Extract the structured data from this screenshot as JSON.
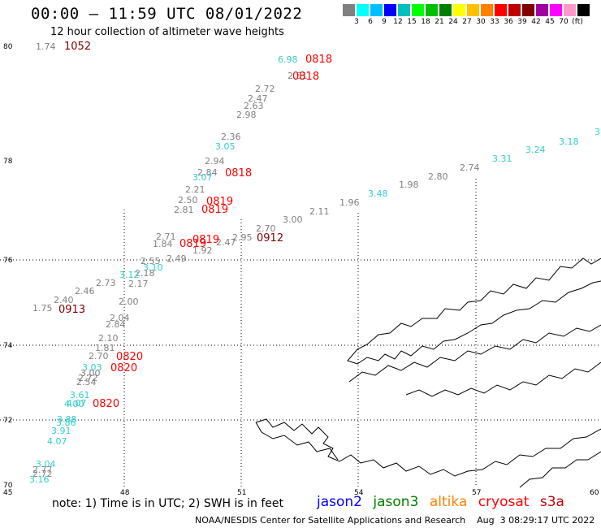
{
  "header": {
    "title": "00:00 – 11:59 UTC 08/01/2022",
    "subtitle": "12 hour collection of altimeter wave heights"
  },
  "color_scale": {
    "colors": [
      "#808080",
      "#00ffff",
      "#00bfff",
      "#0000ff",
      "#00bfbf",
      "#00ff00",
      "#00c000",
      "#008000",
      "#ffff00",
      "#ffc000",
      "#ff8000",
      "#ff0000",
      "#c00000",
      "#800000",
      "#a000a0",
      "#ff00ff",
      "#ff99cc",
      "#000000"
    ],
    "labels": [
      "3",
      "6",
      "9",
      "12",
      "15",
      "18",
      "21",
      "24",
      "27",
      "30",
      "33",
      "36",
      "39",
      "42",
      "45",
      "70",
      "(ft)"
    ]
  },
  "axes": {
    "lat_labels": [
      "80",
      "78",
      "76",
      "74",
      "72",
      "70"
    ],
    "lon_labels": [
      "45",
      "48",
      "51",
      "54",
      "57",
      "60"
    ]
  },
  "swh_points": [
    {
      "text": "1.74",
      "color": "#808080"
    },
    {
      "text": "6.98",
      "color": "#33cccc"
    },
    {
      "text": "2.51",
      "color": "#808080"
    },
    {
      "text": "2.72",
      "color": "#808080"
    },
    {
      "text": "2.47",
      "color": "#808080"
    },
    {
      "text": "2.63",
      "color": "#808080"
    },
    {
      "text": "2.98",
      "color": "#808080"
    },
    {
      "text": "2.36",
      "color": "#808080"
    },
    {
      "text": "3.05",
      "color": "#33cccc"
    },
    {
      "text": "2.94",
      "color": "#808080"
    },
    {
      "text": "2.84",
      "color": "#808080"
    },
    {
      "text": "3.07",
      "color": "#33cccc"
    },
    {
      "text": "2.21",
      "color": "#808080"
    },
    {
      "text": "2.50",
      "color": "#808080"
    },
    {
      "text": "2.81",
      "color": "#808080"
    },
    {
      "text": "2.71",
      "color": "#808080"
    },
    {
      "text": "1.84",
      "color": "#808080"
    },
    {
      "text": "1.92",
      "color": "#808080"
    },
    {
      "text": "2.47",
      "color": "#808080"
    },
    {
      "text": "2.95",
      "color": "#808080"
    },
    {
      "text": "2.70",
      "color": "#808080"
    },
    {
      "text": "3.00",
      "color": "#808080"
    },
    {
      "text": "2.11",
      "color": "#808080"
    },
    {
      "text": "1.96",
      "color": "#808080"
    },
    {
      "text": "3.48",
      "color": "#33cccc"
    },
    {
      "text": "1.98",
      "color": "#808080"
    },
    {
      "text": "2.80",
      "color": "#808080"
    },
    {
      "text": "2.74",
      "color": "#808080"
    },
    {
      "text": "3.31",
      "color": "#33cccc"
    },
    {
      "text": "3.24",
      "color": "#33cccc"
    },
    {
      "text": "3.18",
      "color": "#33cccc"
    },
    {
      "text": "3",
      "color": "#33cccc"
    },
    {
      "text": "2.49",
      "color": "#808080"
    },
    {
      "text": "2.55",
      "color": "#808080"
    },
    {
      "text": "3.10",
      "color": "#33cccc"
    },
    {
      "text": "2.18",
      "color": "#808080"
    },
    {
      "text": "3.12",
      "color": "#33cccc"
    },
    {
      "text": "2.73",
      "color": "#808080"
    },
    {
      "text": "2.17",
      "color": "#808080"
    },
    {
      "text": "2.46",
      "color": "#808080"
    },
    {
      "text": "2.40",
      "color": "#808080"
    },
    {
      "text": "1.75",
      "color": "#808080"
    },
    {
      "text": "2.00",
      "color": "#808080"
    },
    {
      "text": "2.04",
      "color": "#808080"
    },
    {
      "text": "2.84",
      "color": "#808080"
    },
    {
      "text": "2.10",
      "color": "#808080"
    },
    {
      "text": "1.81",
      "color": "#808080"
    },
    {
      "text": "2.70",
      "color": "#808080"
    },
    {
      "text": "3.03",
      "color": "#33cccc"
    },
    {
      "text": "3.00",
      "color": "#808080"
    },
    {
      "text": "2.72",
      "color": "#808080"
    },
    {
      "text": "2.54",
      "color": "#808080"
    },
    {
      "text": "3.61",
      "color": "#33cccc"
    },
    {
      "text": "4.07",
      "color": "#33cccc"
    },
    {
      "text": "4.00",
      "color": "#33cccc"
    },
    {
      "text": "3.88",
      "color": "#33cccc"
    },
    {
      "text": "3.86",
      "color": "#33cccc"
    },
    {
      "text": "3.91",
      "color": "#33cccc"
    },
    {
      "text": "4.07",
      "color": "#33cccc"
    },
    {
      "text": "3.04",
      "color": "#33cccc"
    },
    {
      "text": "2.77",
      "color": "#808080"
    },
    {
      "text": "2.72",
      "color": "#808080"
    },
    {
      "text": "3.16",
      "color": "#33cccc"
    }
  ],
  "time_labels": [
    {
      "text": "1052",
      "color": "#800000"
    },
    {
      "text": "0818",
      "color": "#ff0000"
    },
    {
      "text": "0818",
      "color": "#ff0000"
    },
    {
      "text": "0818",
      "color": "#ff0000"
    },
    {
      "text": "0819",
      "color": "#ff0000"
    },
    {
      "text": "0819",
      "color": "#ff0000"
    },
    {
      "text": "0819",
      "color": "#ff0000"
    },
    {
      "text": "0819",
      "color": "#ff0000"
    },
    {
      "text": "0912",
      "color": "#800000"
    },
    {
      "text": "0913",
      "color": "#800000"
    },
    {
      "text": "0820",
      "color": "#ff0000"
    },
    {
      "text": "0820",
      "color": "#ff0000"
    },
    {
      "text": "0820",
      "color": "#ff0000"
    }
  ],
  "note": "note:  1) Time is in UTC;  2) SWH is in feet",
  "legend": [
    {
      "text": "jason2",
      "color": "#0000ff"
    },
    {
      "text": "jason3",
      "color": "#008000"
    },
    {
      "text": "altika",
      "color": "#ff8000"
    },
    {
      "text": "cryosat",
      "color": "#ff0000"
    },
    {
      "text": "s3a",
      "color": "#c00000"
    }
  ],
  "footer": "NOAA/NESDIS Center for Satellite Applications and Research    Aug  3 08:29:17 UTC 2022"
}
